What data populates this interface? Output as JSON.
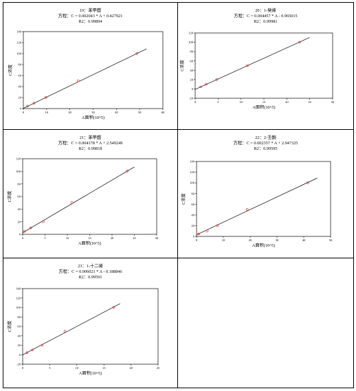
{
  "chart_data": [
    {
      "type": "scatter",
      "title": "19：苯甲醛",
      "equation": "方程：C = 0.002043 * A + 0.427921",
      "r2": "R2：0.99894",
      "xlabel": "A面积(10^5)",
      "ylabel": "C浓度",
      "xlim": [
        0,
        60
      ],
      "ylim": [
        0,
        140
      ],
      "xticks": [
        0,
        10,
        20,
        30,
        40,
        50,
        60
      ],
      "yticks": [
        0,
        20,
        40,
        60,
        80,
        100,
        120,
        140
      ],
      "slope": 2.043,
      "intercept": 0.427921,
      "fit_range": [
        0,
        53
      ],
      "points": [
        [
          1.8,
          4.5
        ],
        [
          4.6,
          9.8
        ],
        [
          9.7,
          20.2
        ],
        [
          23.6,
          50.5
        ],
        [
          48.8,
          100.2
        ]
      ]
    },
    {
      "type": "scatter",
      "title": "20：1-癸烯",
      "equation": "方程：C = 0.004457 * A - 0.965015",
      "r2": "R2：0.99981",
      "xlabel": "A面积(10^5)",
      "ylabel": "C浓度",
      "xlim": [
        0,
        30
      ],
      "ylim": [
        -20,
        120
      ],
      "xticks": [
        0,
        5,
        10,
        15,
        20,
        25,
        30
      ],
      "yticks": [
        -20,
        0,
        20,
        40,
        60,
        80,
        100,
        120
      ],
      "slope": 4.457,
      "intercept": -0.965015,
      "fit_range": [
        0,
        25
      ],
      "points": [
        [
          1.2,
          4.5
        ],
        [
          2.4,
          10.2
        ],
        [
          4.7,
          20.1
        ],
        [
          11.4,
          50.2
        ],
        [
          22.8,
          100.3
        ]
      ]
    },
    {
      "type": "scatter",
      "title": "21：苯甲醛",
      "equation": "方程：C = 0.004178 * A + 2.549249",
      "r2": "R2：0.99818",
      "xlabel": "A面积(10^5)",
      "ylabel": "C浓度",
      "xlim": [
        0,
        30
      ],
      "ylim": [
        0,
        120
      ],
      "xticks": [
        0,
        5,
        10,
        15,
        20,
        25,
        30
      ],
      "yticks": [
        0,
        20,
        40,
        60,
        80,
        100,
        120
      ],
      "slope": 4.178,
      "intercept": 2.549249,
      "fit_range": [
        0,
        25
      ],
      "points": [
        [
          0.4,
          4.8
        ],
        [
          1.8,
          10.3
        ],
        [
          4.6,
          20.2
        ],
        [
          11.0,
          50.2
        ],
        [
          23.4,
          100.4
        ]
      ]
    },
    {
      "type": "scatter",
      "title": "22：2-壬酮",
      "equation": "方程：C = 0.002357 * A + 2.947325",
      "r2": "R2：0.99595",
      "xlabel": "A面积(10^5)",
      "ylabel": "C浓度",
      "xlim": [
        0,
        50
      ],
      "ylim": [
        0,
        140
      ],
      "xticks": [
        0,
        10,
        20,
        30,
        40,
        50
      ],
      "yticks": [
        0,
        20,
        40,
        60,
        80,
        100,
        120,
        140
      ],
      "slope": 2.357,
      "intercept": 2.947325,
      "fit_range": [
        0,
        45
      ],
      "points": [
        [
          0.8,
          4.6
        ],
        [
          4.0,
          10.2
        ],
        [
          7.8,
          20.1
        ],
        [
          18.9,
          50.3
        ],
        [
          41.5,
          100.2
        ]
      ]
    },
    {
      "type": "scatter",
      "title": "23：1-十二烯",
      "equation": "方程：C = 0.006021 * A - 0.188846",
      "r2": "R2：0.99591",
      "xlabel": "A面积(10^5)",
      "ylabel": "C浓度",
      "xlim": [
        0,
        25
      ],
      "ylim": [
        -20,
        140
      ],
      "xticks": [
        0,
        5,
        10,
        15,
        20,
        25
      ],
      "yticks": [
        -20,
        0,
        20,
        40,
        60,
        80,
        100,
        120,
        140
      ],
      "slope": 6.021,
      "intercept": -0.188846,
      "fit_range": [
        0,
        18
      ],
      "points": [
        [
          0.8,
          4.5
        ],
        [
          1.8,
          10.2
        ],
        [
          3.6,
          20.2
        ],
        [
          7.8,
          49.8
        ],
        [
          16.8,
          100.3
        ]
      ]
    }
  ],
  "colors": {
    "marker": "#e03030",
    "line": "#000000",
    "border": "#000000"
  }
}
